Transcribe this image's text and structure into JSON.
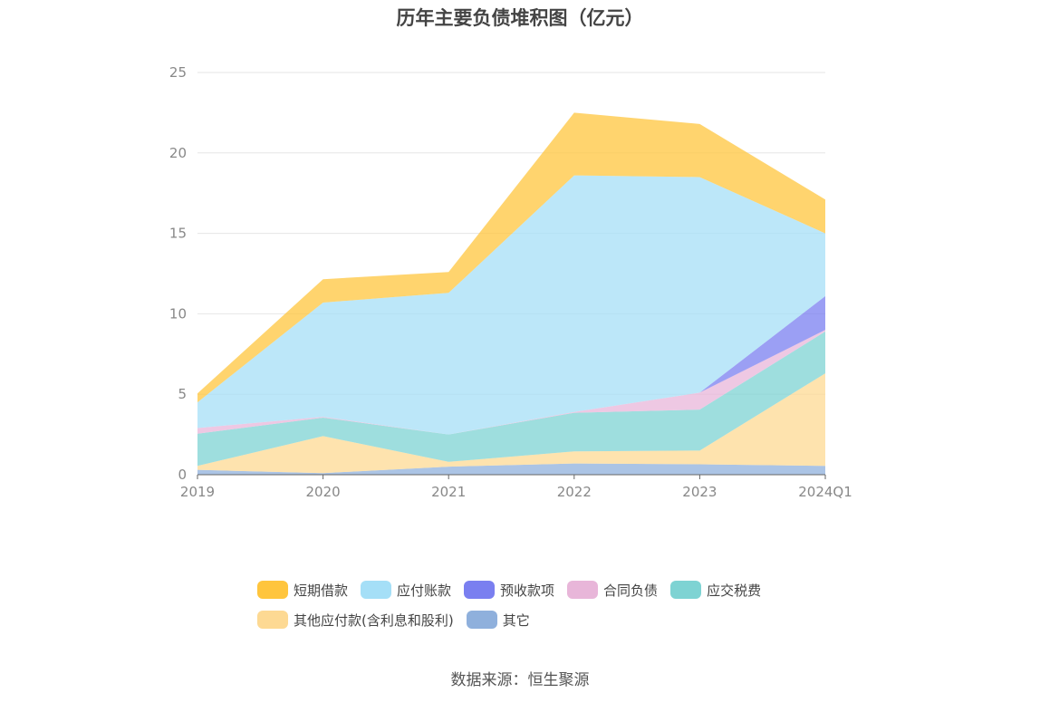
{
  "chart_data": {
    "type": "area",
    "stacked": true,
    "title": "历年主要负债堆积图（亿元）",
    "categories": [
      "2019",
      "2020",
      "2021",
      "2022",
      "2023",
      "2024Q1"
    ],
    "ylim": [
      0,
      25
    ],
    "yticks": [
      0,
      5,
      10,
      15,
      20,
      25
    ],
    "grid": true,
    "legend_position": "bottom",
    "series": [
      {
        "name": "其它",
        "color": "#8fb0dc",
        "values": [
          0.3,
          0.1,
          0.5,
          0.7,
          0.65,
          0.55
        ]
      },
      {
        "name": "其他应付款(含利息和股利)",
        "color": "#fdd993",
        "values": [
          0.25,
          2.3,
          0.3,
          0.75,
          0.85,
          5.75
        ]
      },
      {
        "name": "应交税费",
        "color": "#7ed3d3",
        "values": [
          2.0,
          1.15,
          1.7,
          2.4,
          2.55,
          2.6
        ]
      },
      {
        "name": "合同负债",
        "color": "#e8b6d9",
        "values": [
          0.35,
          0.05,
          0.0,
          0.05,
          1.05,
          0.1
        ]
      },
      {
        "name": "预收款项",
        "color": "#7a7ff0",
        "values": [
          0.0,
          0.0,
          0.0,
          0.0,
          0.0,
          2.1
        ]
      },
      {
        "name": "应付账款",
        "color": "#a5dff7",
        "values": [
          1.6,
          7.1,
          8.8,
          14.7,
          13.4,
          3.9
        ]
      },
      {
        "name": "短期借款",
        "color": "#ffc53d",
        "values": [
          0.55,
          1.45,
          1.3,
          3.9,
          3.3,
          2.1
        ]
      }
    ]
  },
  "legend": [
    {
      "label": "短期借款",
      "color": "#ffc53d"
    },
    {
      "label": "应付账款",
      "color": "#a5dff7"
    },
    {
      "label": "预收款项",
      "color": "#7a7ff0"
    },
    {
      "label": "合同负债",
      "color": "#e8b6d9"
    },
    {
      "label": "应交税费",
      "color": "#7ed3d3"
    },
    {
      "label": "其他应付款(含利息和股利)",
      "color": "#fdd993"
    },
    {
      "label": "其它",
      "color": "#8fb0dc"
    }
  ],
  "source": "数据来源：恒生聚源"
}
